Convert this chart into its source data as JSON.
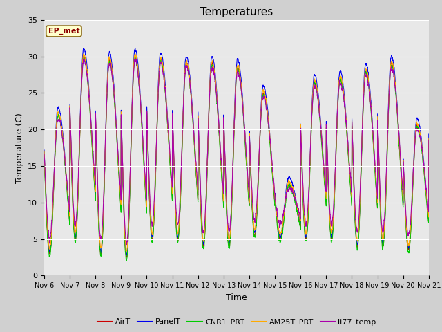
{
  "title": "Temperatures",
  "xlabel": "Time",
  "ylabel": "Temperature (C)",
  "ylim": [
    0,
    35
  ],
  "xlim": [
    0,
    15
  ],
  "x_tick_labels": [
    "Nov 6",
    "Nov 7",
    "Nov 8",
    "Nov 9",
    "Nov 10",
    "Nov 11",
    "Nov 12",
    "Nov 13",
    "Nov 14",
    "Nov 15",
    "Nov 16",
    "Nov 17",
    "Nov 18",
    "Nov 19",
    "Nov 20",
    "Nov 21"
  ],
  "annotation": "EP_met",
  "series_colors": [
    "#cc0000",
    "#0000ee",
    "#00cc00",
    "#ffaa00",
    "#aa00aa"
  ],
  "series_names": [
    "AirT",
    "PanelT",
    "CNR1_PRT",
    "AM25T_PRT",
    "li77_temp"
  ],
  "bg_color": "#e8e8e8",
  "fig_bg_color": "#d0d0d0",
  "grid_color": "#ffffff",
  "daily_mins": [
    3.0,
    5.0,
    3.0,
    2.5,
    5.0,
    5.0,
    4.0,
    4.0,
    5.5,
    5.0,
    5.0,
    5.0,
    4.0,
    4.0,
    3.5,
    11.0
  ],
  "daily_maxes": [
    22.0,
    30.0,
    29.5,
    30.0,
    29.5,
    29.0,
    29.0,
    28.5,
    25.0,
    12.5,
    26.5,
    27.0,
    28.0,
    29.0,
    20.5,
    21.5
  ],
  "n_days": 15
}
